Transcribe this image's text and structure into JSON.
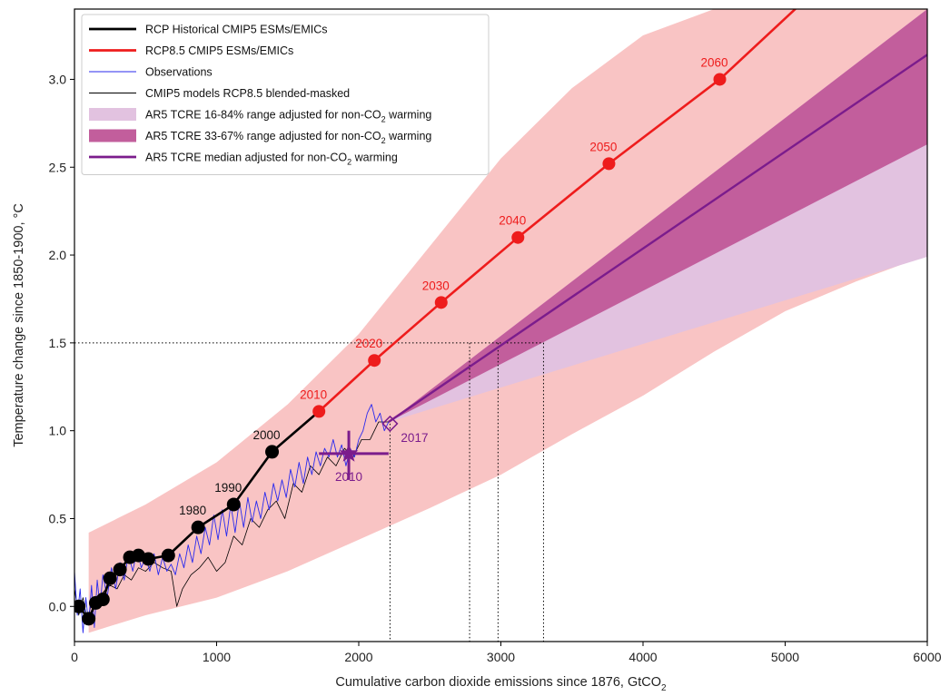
{
  "chart_data": {
    "type": "line",
    "xlabel": "Cumulative carbon dioxide emissions since 1876, GtCO",
    "xlabel_sub": "2",
    "ylabel": "Temperature change since 1850-1900, °C",
    "xlim": [
      0,
      6000
    ],
    "ylim": [
      -0.2,
      3.4
    ],
    "x_ticks": [
      "0",
      "1000",
      "2000",
      "3000",
      "4000",
      "5000",
      "6000"
    ],
    "y_ticks": [
      "0.0",
      "0.5",
      "1.0",
      "1.5",
      "2.0",
      "2.5",
      "3.0"
    ],
    "grid": false,
    "legend_position": "top-left",
    "colors": {
      "historical": "#000000",
      "rcp85": "#ee1c1c",
      "observations": "#2a2aee",
      "cmip5_blended": "#000000",
      "rcp85_range": "#f9c4c4",
      "tcre_16_84": "#e2c2e0",
      "tcre_33_67": "#c25e9c",
      "tcre_median": "#7b1c8c",
      "observed_marker": "#7b1c8c"
    },
    "legend": [
      {
        "key": "historical",
        "label": "RCP Historical CMIP5 ESMs/EMICs",
        "kind": "line"
      },
      {
        "key": "rcp85",
        "label": "RCP8.5 CMIP5 ESMs/EMICs",
        "kind": "line"
      },
      {
        "key": "observations",
        "label": "Observations",
        "kind": "thin"
      },
      {
        "key": "cmip5_blended",
        "label": "CMIP5 models RCP8.5 blended-masked",
        "kind": "thin"
      },
      {
        "key": "tcre_16_84",
        "label": "AR5 TCRE 16-84% range adjusted for non-CO",
        "sub": "2",
        "tail": " warming",
        "kind": "patch"
      },
      {
        "key": "tcre_33_67",
        "label": "AR5 TCRE 33-67% range adjusted for non-CO",
        "sub": "2",
        "tail": " warming",
        "kind": "patch"
      },
      {
        "key": "tcre_median",
        "label": "AR5 TCRE median adjusted for non-CO",
        "sub": "2",
        "tail": " warming",
        "kind": "line"
      }
    ],
    "series": [
      {
        "name": "RCP Historical CMIP5 ESMs/EMICs",
        "key": "historical",
        "x": [
          30,
          100,
          150,
          200,
          250,
          320,
          390,
          450,
          520,
          660,
          870,
          1120,
          1390,
          1720
        ],
        "y": [
          0.0,
          -0.07,
          0.02,
          0.04,
          0.16,
          0.21,
          0.28,
          0.29,
          0.27,
          0.29,
          0.45,
          0.58,
          0.88,
          1.11
        ]
      },
      {
        "name": "RCP8.5 CMIP5 ESMs/EMICs",
        "key": "rcp85",
        "x": [
          1720,
          2110,
          2580,
          3120,
          3760,
          4540,
          5230
        ],
        "y": [
          1.11,
          1.4,
          1.73,
          2.1,
          2.52,
          3.0,
          3.52
        ]
      },
      {
        "name": "Observations",
        "key": "observations",
        "x": [
          0,
          20,
          40,
          60,
          80,
          100,
          120,
          140,
          160,
          180,
          200,
          230,
          260,
          290,
          320,
          350,
          380,
          410,
          440,
          470,
          500,
          530,
          560,
          590,
          620,
          650,
          680,
          710,
          740,
          770,
          800,
          830,
          860,
          890,
          920,
          950,
          980,
          1010,
          1040,
          1070,
          1100,
          1130,
          1160,
          1190,
          1220,
          1250,
          1280,
          1310,
          1340,
          1370,
          1400,
          1430,
          1460,
          1490,
          1520,
          1550,
          1580,
          1610,
          1640,
          1670,
          1700,
          1730,
          1760,
          1790,
          1820,
          1850,
          1880,
          1910,
          1940,
          1970,
          2000,
          2030,
          2060,
          2090,
          2120,
          2150,
          2180,
          2210
        ],
        "y": [
          0.2,
          -0.05,
          0.1,
          -0.15,
          0.05,
          -0.1,
          0.12,
          -0.12,
          0.15,
          0.0,
          0.18,
          0.05,
          0.22,
          0.1,
          0.25,
          0.15,
          0.3,
          0.2,
          0.32,
          0.22,
          0.28,
          0.2,
          0.3,
          0.18,
          0.28,
          0.2,
          0.24,
          0.18,
          0.3,
          0.22,
          0.35,
          0.25,
          0.4,
          0.3,
          0.45,
          0.35,
          0.52,
          0.38,
          0.55,
          0.4,
          0.58,
          0.42,
          0.6,
          0.45,
          0.62,
          0.48,
          0.6,
          0.5,
          0.65,
          0.55,
          0.7,
          0.6,
          0.72,
          0.62,
          0.78,
          0.68,
          0.82,
          0.7,
          0.85,
          0.75,
          0.88,
          0.8,
          0.9,
          0.85,
          0.95,
          0.85,
          0.92,
          0.8,
          0.9,
          0.85,
          0.95,
          1.0,
          1.1,
          1.15,
          1.05,
          1.1,
          1.0,
          1.05
        ]
      },
      {
        "name": "CMIP5 models RCP8.5 blended-masked",
        "key": "cmip5_blended",
        "x": [
          0,
          30,
          60,
          90,
          120,
          160,
          200,
          250,
          300,
          350,
          400,
          450,
          500,
          560,
          620,
          680,
          720,
          760,
          820,
          880,
          940,
          1000,
          1060,
          1120,
          1180,
          1240,
          1300,
          1360,
          1420,
          1480,
          1540,
          1600,
          1660,
          1720,
          1780,
          1840,
          1900,
          1960,
          2020,
          2080,
          2140,
          2210
        ],
        "y": [
          0.1,
          -0.05,
          0.05,
          -0.08,
          0.02,
          0.0,
          0.08,
          0.12,
          0.1,
          0.18,
          0.15,
          0.22,
          0.2,
          0.25,
          0.22,
          0.2,
          0.0,
          0.1,
          0.18,
          0.22,
          0.28,
          0.2,
          0.25,
          0.4,
          0.35,
          0.5,
          0.45,
          0.55,
          0.6,
          0.5,
          0.7,
          0.65,
          0.8,
          0.75,
          0.85,
          0.8,
          0.9,
          0.85,
          0.95,
          0.95,
          1.05,
          1.05
        ]
      },
      {
        "name": "AR5 TCRE median adjusted for non-CO2 warming",
        "key": "tcre_median",
        "x": [
          2210,
          6000
        ],
        "y": [
          1.05,
          3.14
        ]
      }
    ],
    "bands": [
      {
        "name": "RCP8.5 CMIP5 ESMs/EMICs range",
        "key": "rcp85_range",
        "x": [
          100,
          500,
          1000,
          1500,
          2000,
          2500,
          3000,
          3500,
          4000,
          4500,
          5000,
          5500,
          6000
        ],
        "upper": [
          0.42,
          0.58,
          0.82,
          1.15,
          1.55,
          2.05,
          2.55,
          2.95,
          3.25,
          3.4,
          3.4,
          3.4,
          3.4
        ],
        "lower": [
          -0.15,
          -0.05,
          0.05,
          0.2,
          0.38,
          0.56,
          0.75,
          0.98,
          1.2,
          1.45,
          1.68,
          1.85,
          2.0
        ]
      },
      {
        "name": "AR5 TCRE 16-84% range adjusted for non-CO2 warming",
        "key": "tcre_16_84",
        "x": [
          2210,
          6000
        ],
        "upper": [
          1.05,
          3.4
        ],
        "lower": [
          1.05,
          1.99
        ]
      },
      {
        "name": "AR5 TCRE 33-67% range adjusted for non-CO2 warming",
        "key": "tcre_33_67",
        "x": [
          2210,
          6000
        ],
        "upper": [
          1.05,
          3.4
        ],
        "lower": [
          1.05,
          2.63
        ]
      }
    ],
    "decade_labels": [
      {
        "label": "1980",
        "x": 870,
        "y": 0.45,
        "color": "#111111"
      },
      {
        "label": "1990",
        "x": 1120,
        "y": 0.58,
        "color": "#111111"
      },
      {
        "label": "2000",
        "x": 1390,
        "y": 0.88,
        "color": "#111111"
      },
      {
        "label": "2010",
        "x": 1720,
        "y": 1.11,
        "color": "#ee1c1c"
      },
      {
        "label": "2020",
        "x": 2110,
        "y": 1.4,
        "color": "#ee1c1c"
      },
      {
        "label": "2030",
        "x": 2580,
        "y": 1.73,
        "color": "#ee1c1c"
      },
      {
        "label": "2040",
        "x": 3120,
        "y": 2.1,
        "color": "#ee1c1c"
      },
      {
        "label": "2050",
        "x": 3760,
        "y": 2.52,
        "color": "#ee1c1c"
      },
      {
        "label": "2060",
        "x": 4540,
        "y": 3.0,
        "color": "#ee1c1c"
      }
    ],
    "observed_markers": [
      {
        "label": "2010",
        "x": 1930,
        "y": 0.87,
        "xerr": [
          1720,
          2210
        ],
        "yerr": [
          0.72,
          1.0
        ],
        "marker": "star"
      },
      {
        "label": "2017",
        "x": 2220,
        "y": 1.04,
        "marker": "diamond"
      }
    ],
    "reference_lines": {
      "y": 1.5,
      "x_from": 0,
      "x_to": 3300,
      "verticals": [
        {
          "x": 2220,
          "y_top": 1.04
        },
        {
          "x": 2780,
          "y_top": 1.5
        },
        {
          "x": 2980,
          "y_top": 1.5
        },
        {
          "x": 3300,
          "y_top": 1.5
        }
      ]
    }
  }
}
